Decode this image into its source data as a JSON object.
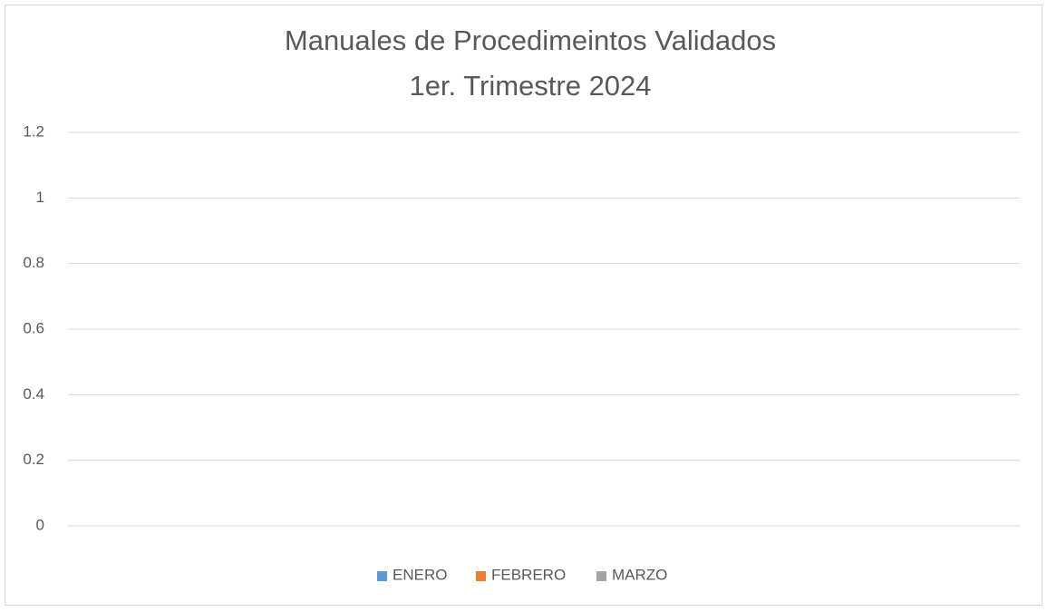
{
  "chart_data": {
    "type": "bar",
    "title": "Manuales de Procedimeintos Validados",
    "subtitle": "1er. Trimestre 2024",
    "categories": [
      null
    ],
    "series": [
      {
        "name": "ENERO",
        "color": "#5b9bd5",
        "values": [
          0
        ]
      },
      {
        "name": "FEBRERO",
        "color": "#ed7d31",
        "values": [
          0
        ]
      },
      {
        "name": "MARZO",
        "color": "#a5a5a5",
        "values": [
          0
        ]
      }
    ],
    "ylim": [
      0,
      1.2
    ],
    "yticks": [
      0,
      0.2,
      0.4,
      0.6,
      0.8,
      1,
      1.2
    ],
    "grid": true,
    "legend": "bottom"
  }
}
